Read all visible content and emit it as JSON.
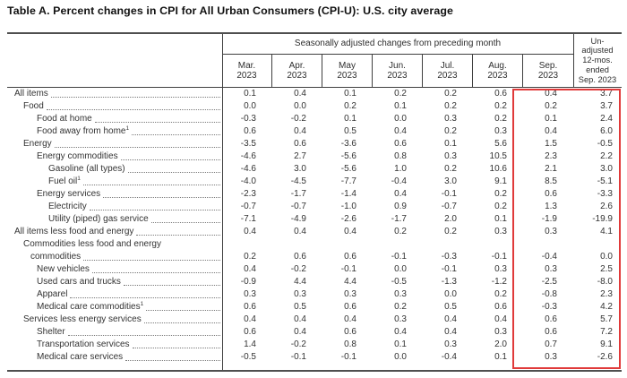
{
  "title": "Table A. Percent changes in CPI for All Urban Consumers (CPI-U): U.S. city average",
  "colors": {
    "highlight": "#e03a3a"
  },
  "table": {
    "group_header": "Seasonally adjusted changes from preceding month",
    "unadjusted_header_lines": [
      "Un-",
      "adjusted",
      "12-mos.",
      "ended",
      "Sep. 2023"
    ],
    "month_headers": [
      {
        "line1": "Mar.",
        "line2": "2023"
      },
      {
        "line1": "Apr.",
        "line2": "2023"
      },
      {
        "line1": "May",
        "line2": "2023"
      },
      {
        "line1": "Jun.",
        "line2": "2023"
      },
      {
        "line1": "Jul.",
        "line2": "2023"
      },
      {
        "line1": "Aug.",
        "line2": "2023"
      },
      {
        "line1": "Sep.",
        "line2": "2023"
      }
    ],
    "rows": [
      {
        "label": "All items",
        "indent": 0,
        "values": [
          "0.1",
          "0.4",
          "0.1",
          "0.2",
          "0.2",
          "0.6",
          "0.4",
          "3.7"
        ]
      },
      {
        "label": "Food",
        "indent": 1,
        "values": [
          "0.0",
          "0.0",
          "0.2",
          "0.1",
          "0.2",
          "0.2",
          "0.2",
          "3.7"
        ]
      },
      {
        "label": "Food at home",
        "indent": 2,
        "values": [
          "-0.3",
          "-0.2",
          "0.1",
          "0.0",
          "0.3",
          "0.2",
          "0.1",
          "2.4"
        ]
      },
      {
        "label": "Food away from home",
        "footnote": "1",
        "indent": 2,
        "values": [
          "0.6",
          "0.4",
          "0.5",
          "0.4",
          "0.2",
          "0.3",
          "0.4",
          "6.0"
        ]
      },
      {
        "label": "Energy",
        "indent": 1,
        "values": [
          "-3.5",
          "0.6",
          "-3.6",
          "0.6",
          "0.1",
          "5.6",
          "1.5",
          "-0.5"
        ]
      },
      {
        "label": "Energy commodities",
        "indent": 2,
        "values": [
          "-4.6",
          "2.7",
          "-5.6",
          "0.8",
          "0.3",
          "10.5",
          "2.3",
          "2.2"
        ]
      },
      {
        "label": "Gasoline (all types)",
        "indent": 3,
        "values": [
          "-4.6",
          "3.0",
          "-5.6",
          "1.0",
          "0.2",
          "10.6",
          "2.1",
          "3.0"
        ]
      },
      {
        "label": "Fuel oil",
        "footnote": "1",
        "indent": 3,
        "values": [
          "-4.0",
          "-4.5",
          "-7.7",
          "-0.4",
          "3.0",
          "9.1",
          "8.5",
          "-5.1"
        ]
      },
      {
        "label": "Energy services",
        "indent": 2,
        "values": [
          "-2.3",
          "-1.7",
          "-1.4",
          "0.4",
          "-0.1",
          "0.2",
          "0.6",
          "-3.3"
        ]
      },
      {
        "label": "Electricity",
        "indent": 3,
        "values": [
          "-0.7",
          "-0.7",
          "-1.0",
          "0.9",
          "-0.7",
          "0.2",
          "1.3",
          "2.6"
        ]
      },
      {
        "label": "Utility (piped) gas service",
        "indent": 3,
        "values": [
          "-7.1",
          "-4.9",
          "-2.6",
          "-1.7",
          "2.0",
          "0.1",
          "-1.9",
          "-19.9"
        ]
      },
      {
        "label": "All items less food and energy",
        "indent": 0,
        "values": [
          "0.4",
          "0.4",
          "0.4",
          "0.2",
          "0.2",
          "0.3",
          "0.3",
          "4.1"
        ]
      },
      {
        "label": "Commodities less food and energy",
        "label2": "commodities",
        "indent": 1,
        "values": [
          "0.2",
          "0.6",
          "0.6",
          "-0.1",
          "-0.3",
          "-0.1",
          "-0.4",
          "0.0"
        ]
      },
      {
        "label": "New vehicles",
        "indent": 2,
        "values": [
          "0.4",
          "-0.2",
          "-0.1",
          "0.0",
          "-0.1",
          "0.3",
          "0.3",
          "2.5"
        ]
      },
      {
        "label": "Used cars and trucks",
        "indent": 2,
        "values": [
          "-0.9",
          "4.4",
          "4.4",
          "-0.5",
          "-1.3",
          "-1.2",
          "-2.5",
          "-8.0"
        ]
      },
      {
        "label": "Apparel",
        "indent": 2,
        "values": [
          "0.3",
          "0.3",
          "0.3",
          "0.3",
          "0.0",
          "0.2",
          "-0.8",
          "2.3"
        ]
      },
      {
        "label": "Medical care commodities",
        "footnote": "1",
        "indent": 2,
        "values": [
          "0.6",
          "0.5",
          "0.6",
          "0.2",
          "0.5",
          "0.6",
          "-0.3",
          "4.2"
        ]
      },
      {
        "label": "Services less energy services",
        "indent": 1,
        "values": [
          "0.4",
          "0.4",
          "0.4",
          "0.3",
          "0.4",
          "0.4",
          "0.6",
          "5.7"
        ]
      },
      {
        "label": "Shelter",
        "indent": 2,
        "values": [
          "0.6",
          "0.4",
          "0.6",
          "0.4",
          "0.4",
          "0.3",
          "0.6",
          "7.2"
        ]
      },
      {
        "label": "Transportation services",
        "indent": 2,
        "values": [
          "1.4",
          "-0.2",
          "0.8",
          "0.1",
          "0.3",
          "2.0",
          "0.7",
          "9.1"
        ]
      },
      {
        "label": "Medical care services",
        "indent": 2,
        "values": [
          "-0.5",
          "-0.1",
          "-0.1",
          "0.0",
          "-0.4",
          "0.1",
          "0.3",
          "-2.6"
        ]
      }
    ]
  }
}
